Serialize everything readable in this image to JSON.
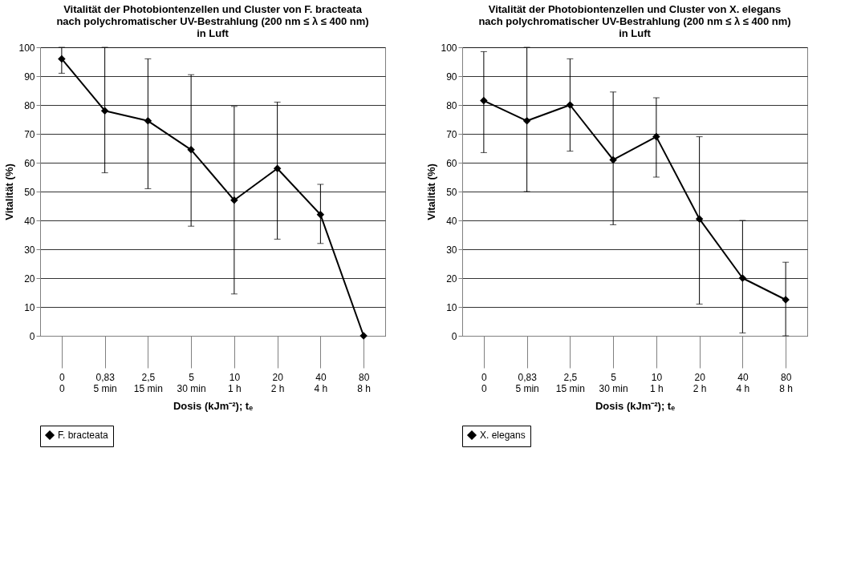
{
  "chart_data": [
    {
      "type": "line",
      "title": [
        "Vitalität der Photobiontenzellen und Cluster von F. bracteata",
        "nach polychromatischer UV-Bestrahlung (200 nm ≤ λ ≤ 400 nm)",
        "in Luft"
      ],
      "xlabel": "Dosis (kJm⁻²); tₑ",
      "ylabel": "Vitalität (%)",
      "categories": [
        "0\n0",
        "0,83\n5 min",
        "2,5\n15 min",
        "5\n30 min",
        "10\n1 h",
        "20\n2 h",
        "40\n4 h",
        "80\n8 h"
      ],
      "series": [
        {
          "name": "F. bracteata",
          "color": "#000000",
          "values": [
            96,
            78,
            74.5,
            64.5,
            47,
            58,
            42,
            0
          ],
          "errors": [
            [
              91,
              100
            ],
            [
              56.5,
              100
            ],
            [
              51,
              96
            ],
            [
              38,
              90.5
            ],
            [
              14.5,
              79.5
            ],
            [
              33.5,
              81
            ],
            [
              32,
              52.5
            ],
            null
          ]
        }
      ],
      "ylim": [
        0,
        100
      ],
      "yticks": [
        0,
        10,
        20,
        30,
        40,
        50,
        60,
        70,
        80,
        90,
        100
      ],
      "grid": "y",
      "legend": "bottom",
      "marker": "diamond",
      "line_style": "solid"
    },
    {
      "type": "line",
      "title": [
        "Vitalität der Photobiontenzellen und Cluster von X. elegans",
        "nach polychromatischer UV-Bestrahlung (200 nm ≤ λ ≤ 400 nm)",
        "in Luft"
      ],
      "xlabel": "Dosis (kJm⁻²); tₑ",
      "ylabel": "Vitalität (%)",
      "categories": [
        "0\n0",
        "0,83\n5 min",
        "2,5\n15 min",
        "5\n30 min",
        "10\n1 h",
        "20\n2 h",
        "40\n4 h",
        "80\n8 h"
      ],
      "series": [
        {
          "name": "X. elegans",
          "color": "#000000",
          "values": [
            81.5,
            74.5,
            80,
            61,
            69,
            40.5,
            20,
            12.5
          ],
          "errors": [
            [
              63.5,
              98.5
            ],
            [
              50,
              100
            ],
            [
              64,
              96
            ],
            [
              38.5,
              84.5
            ],
            [
              55,
              82.5
            ],
            [
              11,
              69
            ],
            [
              1,
              40
            ],
            [
              0,
              25.5
            ]
          ]
        }
      ],
      "ylim": [
        0,
        100
      ],
      "yticks": [
        0,
        10,
        20,
        30,
        40,
        50,
        60,
        70,
        80,
        90,
        100
      ],
      "grid": "y",
      "legend": "bottom",
      "marker": "diamond",
      "line_style": "solid"
    }
  ]
}
